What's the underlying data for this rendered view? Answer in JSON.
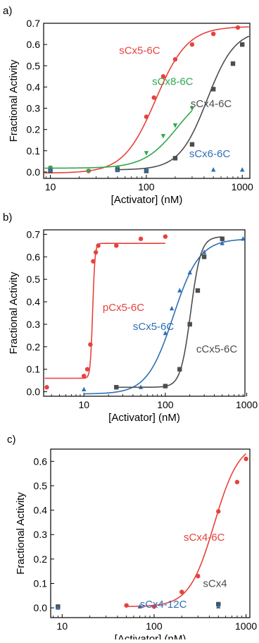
{
  "chart_data": [
    {
      "panel_label": "a)",
      "type": "scatter",
      "xscale": "log",
      "xlabel": "[Activator] (nM)",
      "ylabel": "Fractional Activity",
      "xlim": [
        8.5,
        1200
      ],
      "ylim": [
        -0.03,
        0.7
      ],
      "xticks": [
        10,
        100,
        1000
      ],
      "xtick_labels": [
        "10",
        "100",
        "1000"
      ],
      "yticks": [
        0.0,
        0.1,
        0.2,
        0.3,
        0.4,
        0.5,
        0.6,
        0.7
      ],
      "ytick_labels": [
        "0.0",
        "0.1",
        "0.2",
        "0.3",
        "0.4",
        "0.5",
        "0.6",
        "0.7"
      ],
      "grid": false,
      "series": [
        {
          "name": "sCx5-6C",
          "color": "#e8413c",
          "marker": "circle",
          "points": [
            [
              10,
              0.02
            ],
            [
              25,
              0.005
            ],
            [
              50,
              0.02
            ],
            [
              100,
              0.26
            ],
            [
              120,
              0.35
            ],
            [
              150,
              0.45
            ],
            [
              200,
              0.53
            ],
            [
              300,
              0.6
            ],
            [
              500,
              0.65
            ],
            [
              900,
              0.68
            ]
          ],
          "fit": {
            "bottom": -0.005,
            "top": 0.685,
            "ec50": 125,
            "hill": 2.6
          }
        },
        {
          "name": "sCx8-6C",
          "color": "#2ea84f",
          "marker": "triangle-down",
          "points": [
            [
              10,
              0.02
            ],
            [
              25,
              0.005
            ],
            [
              50,
              0.02
            ],
            [
              100,
              0.09
            ],
            [
              150,
              0.17
            ],
            [
              200,
              0.22
            ],
            [
              300,
              0.3
            ]
          ],
          "fit": {
            "bottom": 0.018,
            "top": 0.4,
            "ec50": 210,
            "hill": 2.5,
            "xmax": 300
          }
        },
        {
          "name": "sCx4-6C",
          "color": "#4d4d4d",
          "marker": "square",
          "points": [
            [
              10,
              0.005
            ],
            [
              50,
              0.01
            ],
            [
              100,
              0.005
            ],
            [
              200,
              0.065
            ],
            [
              300,
              0.13
            ],
            [
              500,
              0.39
            ],
            [
              800,
              0.51
            ],
            [
              1000,
              0.6
            ]
          ],
          "fit": {
            "bottom": 0.01,
            "top": 0.67,
            "ec50": 430,
            "hill": 3.0,
            "xmin": 50
          }
        },
        {
          "name": "sCx6-6C",
          "color": "#2f6fb6",
          "marker": "triangle",
          "points": [
            [
              10,
              0.01
            ],
            [
              50,
              0.01
            ],
            [
              100,
              0.01
            ],
            [
              500,
              0.01
            ],
            [
              1000,
              0.01
            ]
          ]
        }
      ],
      "annotations": [
        {
          "text": "sCx5-6C",
          "x": 52,
          "y": 0.555,
          "color": "#e8413c"
        },
        {
          "text": "sCx8-6C",
          "x": 115,
          "y": 0.41,
          "color": "#2ea84f"
        },
        {
          "text": "sCx4-6C",
          "x": 290,
          "y": 0.305,
          "color": "#4d4d4d"
        },
        {
          "text": "sCx6-6C",
          "x": 280,
          "y": 0.07,
          "color": "#2f6fb6"
        }
      ]
    },
    {
      "panel_label": "b)",
      "type": "scatter",
      "xscale": "log",
      "xlabel": "[Activator] (nM)",
      "ylabel": "Fractional Activity",
      "xlim": [
        3.2,
        950
      ],
      "ylim": [
        -0.02,
        0.72
      ],
      "xticks": [
        10,
        100,
        1000
      ],
      "xtick_labels": [
        "10",
        "100",
        "1000"
      ],
      "yticks": [
        0.0,
        0.1,
        0.2,
        0.3,
        0.4,
        0.5,
        0.6,
        0.7
      ],
      "ytick_labels": [
        "0.0",
        "0.1",
        "0.2",
        "0.3",
        "0.4",
        "0.5",
        "0.6",
        "0.7"
      ],
      "grid": false,
      "series": [
        {
          "name": "pCx5-6C",
          "color": "#e8413c",
          "marker": "circle",
          "points": [
            [
              3.5,
              0.02
            ],
            [
              10,
              0.07
            ],
            [
              11,
              0.1
            ],
            [
              12,
              0.21
            ],
            [
              13,
              0.58
            ],
            [
              14,
              0.62
            ],
            [
              15,
              0.65
            ],
            [
              25,
              0.65
            ],
            [
              50,
              0.68
            ],
            [
              100,
              0.69
            ]
          ],
          "fit": {
            "bottom": 0.06,
            "top": 0.66,
            "ec50": 12.8,
            "hill": 30,
            "xmin": 3.3,
            "xmax": 100
          }
        },
        {
          "name": "sCx5-6C",
          "color": "#2f6fb6",
          "marker": "triangle",
          "points": [
            [
              10,
              0.01
            ],
            [
              50,
              0.02
            ],
            [
              100,
              0.26
            ],
            [
              120,
              0.37
            ],
            [
              150,
              0.45
            ],
            [
              200,
              0.53
            ],
            [
              300,
              0.62
            ],
            [
              500,
              0.66
            ],
            [
              900,
              0.68
            ]
          ],
          "fit": {
            "bottom": -0.01,
            "top": 0.68,
            "ec50": 125,
            "hill": 2.7,
            "xmin": 10
          }
        },
        {
          "name": "cCx5-6C",
          "color": "#4d4d4d",
          "marker": "square",
          "points": [
            [
              25,
              0.02
            ],
            [
              100,
              0.025
            ],
            [
              150,
              0.1
            ],
            [
              200,
              0.3
            ],
            [
              250,
              0.45
            ],
            [
              300,
              0.6
            ],
            [
              500,
              0.68
            ]
          ],
          "fit": {
            "bottom": 0.02,
            "top": 0.69,
            "ec50": 205,
            "hill": 7,
            "xmin": 25,
            "xmax": 500
          }
        }
      ],
      "annotations": [
        {
          "text": "pCx5-6C",
          "x": 17,
          "y": 0.36,
          "color": "#e8413c"
        },
        {
          "text": "sCx5-6C",
          "x": 40,
          "y": 0.275,
          "color": "#2f6fb6"
        },
        {
          "text": "cCx5-6C",
          "x": 240,
          "y": 0.175,
          "color": "#4d4d4d"
        }
      ]
    },
    {
      "panel_label": "c)",
      "type": "scatter",
      "xscale": "log",
      "xlabel": "[Activator] (nM)",
      "ylabel": "Fractional Activity",
      "xlim": [
        7.5,
        1100
      ],
      "ylim": [
        -0.04,
        0.65
      ],
      "xticks": [
        10,
        100,
        1000
      ],
      "xtick_labels": [
        "10",
        "100",
        "1000"
      ],
      "yticks": [
        0.0,
        0.1,
        0.2,
        0.3,
        0.4,
        0.5,
        0.6
      ],
      "ytick_labels": [
        "0.0",
        "0.1",
        "0.2",
        "0.3",
        "0.4",
        "0.5",
        "0.6"
      ],
      "grid": false,
      "series": [
        {
          "name": "sCx4-6C",
          "color": "#e8413c",
          "marker": "circle",
          "points": [
            [
              50,
              0.01
            ],
            [
              100,
              0.005
            ],
            [
              200,
              0.065
            ],
            [
              300,
              0.13
            ],
            [
              500,
              0.395
            ],
            [
              800,
              0.515
            ],
            [
              1000,
              0.61
            ]
          ],
          "fit": {
            "bottom": 0.005,
            "top": 0.68,
            "ec50": 450,
            "hill": 3.2,
            "xmin": 50,
            "xmax": 1000
          }
        },
        {
          "name": "sCx4",
          "color": "#4d4d4d",
          "marker": "square",
          "points": [
            [
              9,
              0.005
            ],
            [
              500,
              0.015
            ]
          ]
        },
        {
          "name": "sCx4-12C",
          "color": "#2f6fb6",
          "marker": "triangle",
          "points": [
            [
              9,
              0.0
            ],
            [
              70,
              0.005
            ],
            [
              500,
              0.005
            ]
          ]
        }
      ],
      "annotations": [
        {
          "text": "sCx4-6C",
          "x": 210,
          "y": 0.275,
          "color": "#e8413c"
        },
        {
          "text": "sCx4",
          "x": 340,
          "y": 0.085,
          "color": "#4d4d4d"
        },
        {
          "text": "sCx4-12C",
          "x": 70,
          "y": 0.0,
          "color": "#2f6fb6"
        }
      ]
    }
  ]
}
